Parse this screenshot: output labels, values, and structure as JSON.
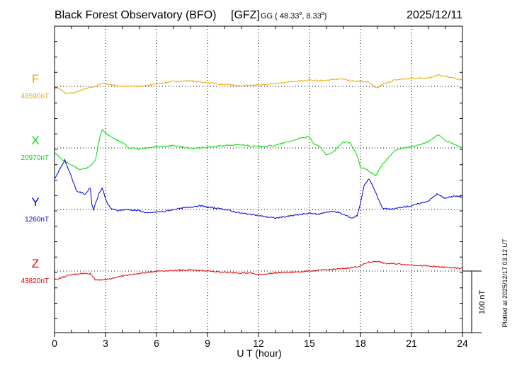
{
  "header": {
    "station": "Black Forest Observatory (BFO)",
    "institute": "[GFZ]",
    "coords_prefix": "GG ( 48.33",
    "coords_mid": ",   8.33",
    "coords_suffix": ")",
    "degree_mark": "o",
    "date": "2025/12/11"
  },
  "footer_note": "Plotted at 2025/12/17 03:12 UT",
  "chart_data": {
    "type": "line",
    "xlabel": "U T (hour)",
    "xlim": [
      0,
      24
    ],
    "x_ticks": [
      0,
      3,
      6,
      9,
      12,
      15,
      18,
      21,
      24
    ],
    "x_tick_labels": [
      "0",
      "3",
      "6",
      "9",
      "12",
      "15",
      "18",
      "21",
      "24"
    ],
    "grid": true,
    "scale_bar": {
      "value_nT": 100,
      "label": "100 nT"
    },
    "series": [
      {
        "name": "F",
        "baseline_label": "48590nT",
        "baseline_nT": 48590,
        "color": "#f0a800",
        "points": [
          [
            0,
            0
          ],
          [
            0.4,
            -6
          ],
          [
            0.7,
            -12
          ],
          [
            1.2,
            -10
          ],
          [
            1.8,
            -4
          ],
          [
            2.3,
            -1
          ],
          [
            2.6,
            2
          ],
          [
            2.8,
            6
          ],
          [
            3.3,
            2
          ],
          [
            4,
            0
          ],
          [
            5,
            0
          ],
          [
            6,
            4
          ],
          [
            7,
            8
          ],
          [
            8,
            9
          ],
          [
            9,
            6
          ],
          [
            10,
            3
          ],
          [
            11,
            1
          ],
          [
            12,
            2
          ],
          [
            13,
            4
          ],
          [
            14,
            8
          ],
          [
            15,
            10
          ],
          [
            15.5,
            9
          ],
          [
            16,
            10
          ],
          [
            17,
            12
          ],
          [
            17.5,
            9
          ],
          [
            18,
            8
          ],
          [
            18.5,
            7
          ],
          [
            18.9,
            -3
          ],
          [
            19.3,
            3
          ],
          [
            20,
            10
          ],
          [
            21,
            13
          ],
          [
            22,
            14
          ],
          [
            22.6,
            18
          ],
          [
            23.2,
            15
          ],
          [
            24,
            10
          ]
        ]
      },
      {
        "name": "X",
        "baseline_label": "20970nT",
        "baseline_nT": 20970,
        "color": "#00dc00",
        "points": [
          [
            0,
            -8
          ],
          [
            0.5,
            -20
          ],
          [
            1,
            -28
          ],
          [
            1.5,
            -35
          ],
          [
            2,
            -32
          ],
          [
            2.4,
            -20
          ],
          [
            2.7,
            22
          ],
          [
            2.8,
            30
          ],
          [
            3.2,
            20
          ],
          [
            3.6,
            14
          ],
          [
            4,
            8
          ],
          [
            4.4,
            0
          ],
          [
            5,
            -2
          ],
          [
            6,
            2
          ],
          [
            7,
            4
          ],
          [
            8,
            -1
          ],
          [
            9,
            1
          ],
          [
            10,
            4
          ],
          [
            11,
            5
          ],
          [
            12,
            2
          ],
          [
            13,
            4
          ],
          [
            14,
            12
          ],
          [
            14.5,
            16
          ],
          [
            15,
            18
          ],
          [
            15.2,
            8
          ],
          [
            15.6,
            2
          ],
          [
            16,
            -12
          ],
          [
            16.5,
            -4
          ],
          [
            17,
            10
          ],
          [
            17.4,
            8
          ],
          [
            17.8,
            -12
          ],
          [
            18,
            -32
          ],
          [
            18.3,
            -34
          ],
          [
            18.6,
            -40
          ],
          [
            18.9,
            -45
          ],
          [
            19.2,
            -30
          ],
          [
            19.5,
            -20
          ],
          [
            20,
            -5
          ],
          [
            20.5,
            0
          ],
          [
            21,
            2
          ],
          [
            21.5,
            5
          ],
          [
            22,
            10
          ],
          [
            22.6,
            22
          ],
          [
            23,
            12
          ],
          [
            24,
            0
          ]
        ]
      },
      {
        "name": "Y",
        "baseline_label": "1260nT",
        "baseline_nT": 1260,
        "color": "#0000dc",
        "points": [
          [
            0,
            50
          ],
          [
            0.4,
            70
          ],
          [
            0.6,
            80
          ],
          [
            0.9,
            60
          ],
          [
            1.3,
            30
          ],
          [
            1.8,
            25
          ],
          [
            2.1,
            35
          ],
          [
            2.2,
            8
          ],
          [
            2.3,
            0
          ],
          [
            2.6,
            25
          ],
          [
            2.8,
            35
          ],
          [
            3.1,
            10
          ],
          [
            3.3,
            2
          ],
          [
            3.7,
            -2
          ],
          [
            4.2,
            0
          ],
          [
            5,
            -2
          ],
          [
            5.5,
            -6
          ],
          [
            6,
            -4
          ],
          [
            6.5,
            -3
          ],
          [
            7,
            0
          ],
          [
            7.5,
            2
          ],
          [
            8,
            4
          ],
          [
            8.5,
            6
          ],
          [
            9,
            4
          ],
          [
            10,
            0
          ],
          [
            11,
            -6
          ],
          [
            12,
            -10
          ],
          [
            12.5,
            -12
          ],
          [
            13,
            -14
          ],
          [
            14,
            -10
          ],
          [
            15,
            -6
          ],
          [
            15.5,
            -8
          ],
          [
            16,
            -4
          ],
          [
            16.5,
            -3
          ],
          [
            17,
            -8
          ],
          [
            17.5,
            -14
          ],
          [
            17.8,
            -10
          ],
          [
            18,
            10
          ],
          [
            18.2,
            38
          ],
          [
            18.5,
            50
          ],
          [
            18.7,
            40
          ],
          [
            19,
            20
          ],
          [
            19.3,
            2
          ],
          [
            19.8,
            0
          ],
          [
            20.5,
            4
          ],
          [
            21,
            6
          ],
          [
            21.5,
            10
          ],
          [
            22,
            14
          ],
          [
            22.5,
            25
          ],
          [
            23,
            18
          ],
          [
            23.5,
            22
          ],
          [
            24,
            20
          ]
        ]
      },
      {
        "name": "Z",
        "baseline_label": "43820nT",
        "baseline_nT": 43820,
        "color": "#e00000",
        "points": [
          [
            0,
            -14
          ],
          [
            0.5,
            -10
          ],
          [
            1,
            -6
          ],
          [
            1.5,
            -4
          ],
          [
            2.1,
            -4
          ],
          [
            2.4,
            -14
          ],
          [
            3,
            -14
          ],
          [
            4,
            -8
          ],
          [
            5,
            -4
          ],
          [
            6,
            0
          ],
          [
            7,
            1
          ],
          [
            8,
            2
          ],
          [
            9,
            0
          ],
          [
            10,
            -2
          ],
          [
            11,
            -3
          ],
          [
            11.5,
            -3
          ],
          [
            12,
            -6
          ],
          [
            13,
            -3
          ],
          [
            14,
            -2
          ],
          [
            15,
            0
          ],
          [
            16,
            2
          ],
          [
            17,
            4
          ],
          [
            18,
            8
          ],
          [
            18.4,
            14
          ],
          [
            19,
            16
          ],
          [
            19.5,
            12
          ],
          [
            20,
            12
          ],
          [
            21,
            10
          ],
          [
            22,
            8
          ],
          [
            23,
            6
          ],
          [
            24,
            4
          ]
        ]
      }
    ]
  }
}
